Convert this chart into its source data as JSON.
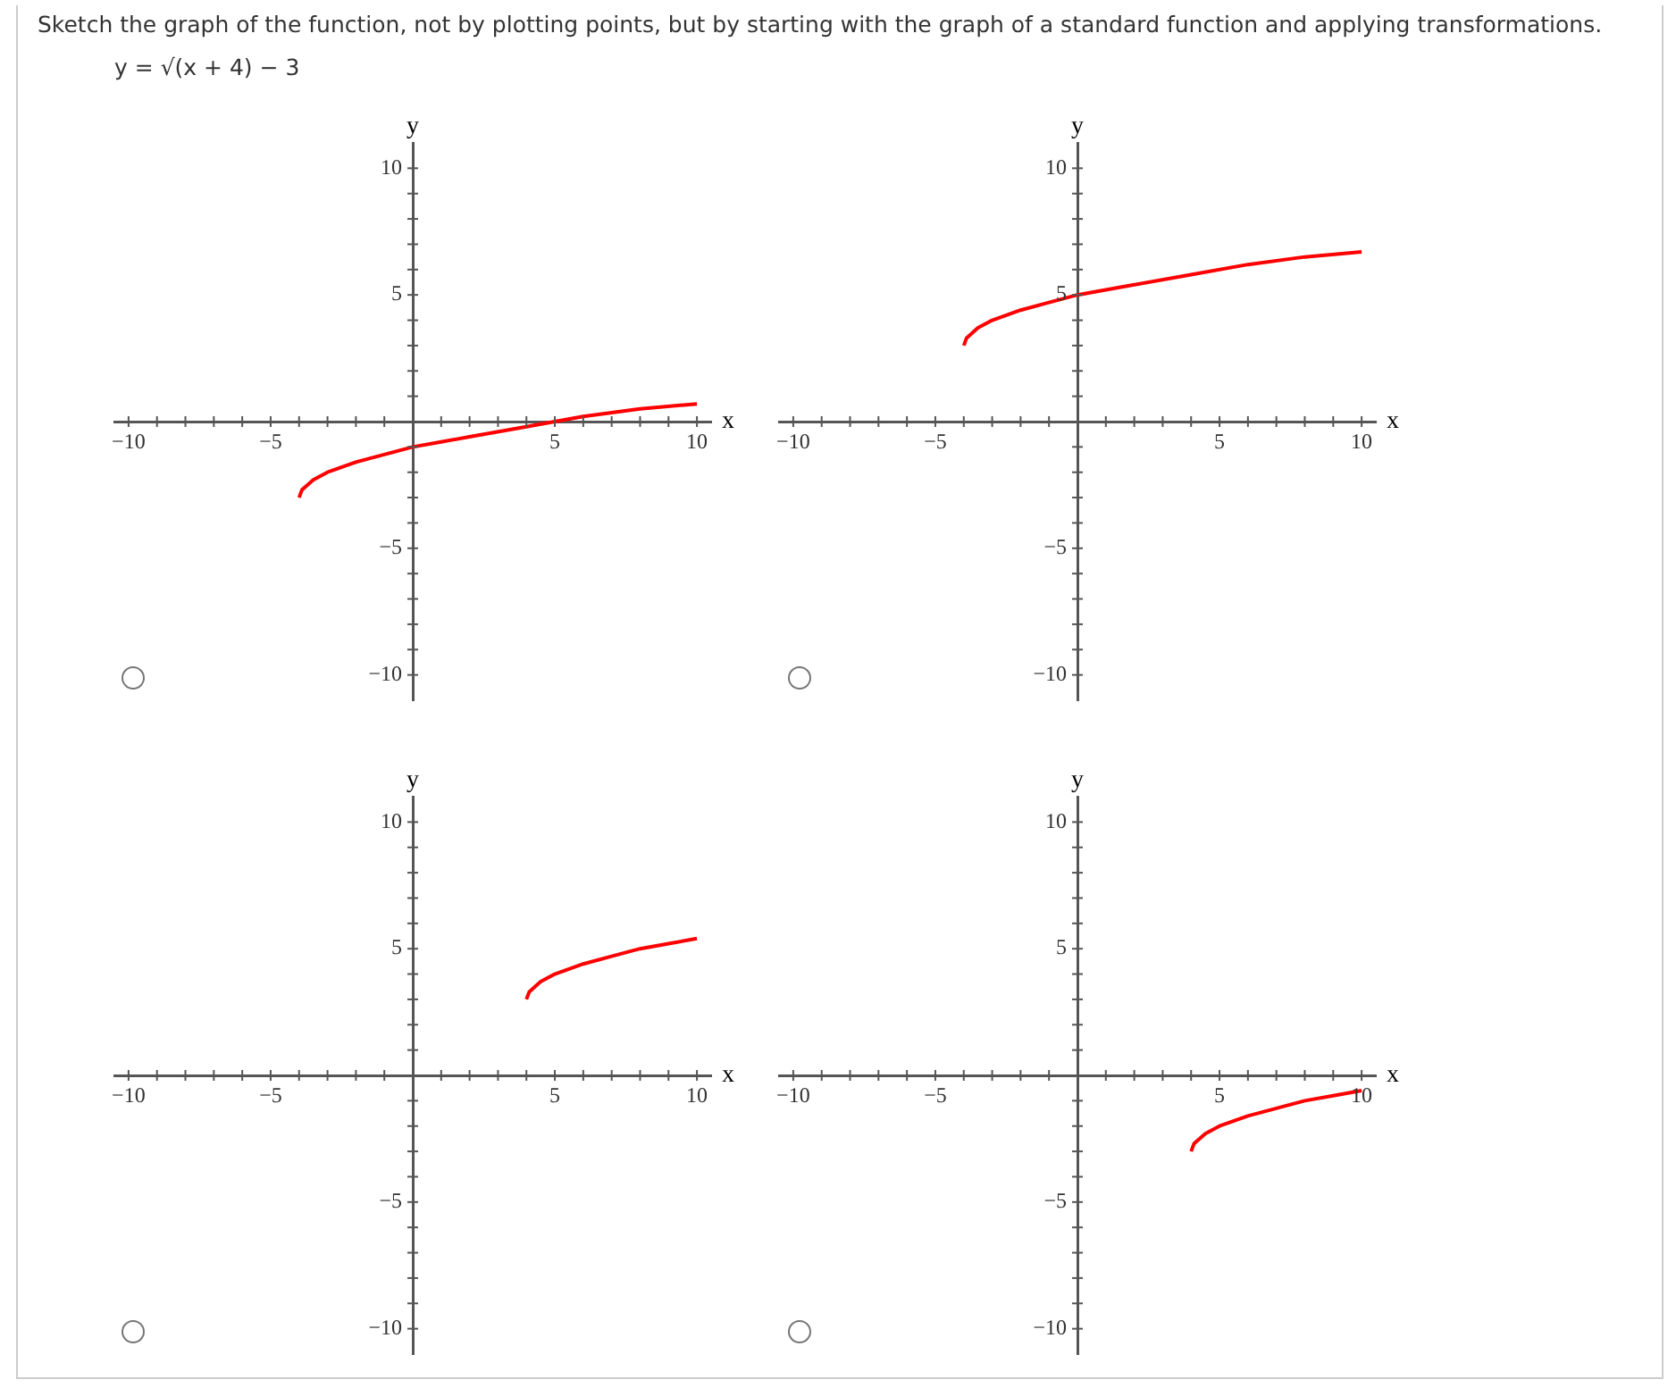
{
  "chart_data": [
    {
      "type": "line",
      "title": "Sketch the graph of the function, not by plotting points, but by starting with the graph of a standard function and applying transformations.",
      "subtitle": "y = √(x + 4) − 3",
      "xlabel": "x",
      "ylabel": "y",
      "xlim": [
        -10.5,
        10.5
      ],
      "ylim": [
        -11,
        11
      ],
      "xticks": [
        {
          "value": -10,
          "label": "−10"
        },
        {
          "value": -9,
          "label": null
        },
        {
          "value": -8,
          "label": null
        },
        {
          "value": -7,
          "label": null
        },
        {
          "value": -6,
          "label": null
        },
        {
          "value": -5,
          "label": "−5"
        },
        {
          "value": -4,
          "label": null
        },
        {
          "value": -3,
          "label": null
        },
        {
          "value": -2,
          "label": null
        },
        {
          "value": -1,
          "label": null
        },
        {
          "value": 1,
          "label": null
        },
        {
          "value": 2,
          "label": null
        },
        {
          "value": 3,
          "label": null
        },
        {
          "value": 4,
          "label": null
        },
        {
          "value": 5,
          "label": "5"
        },
        {
          "value": 6,
          "label": null
        },
        {
          "value": 7,
          "label": null
        },
        {
          "value": 8,
          "label": null
        },
        {
          "value": 9,
          "label": null
        },
        {
          "value": 10,
          "label": "10"
        }
      ],
      "yticks": [
        {
          "value": -10,
          "label": "−10"
        },
        {
          "value": -9,
          "label": null
        },
        {
          "value": -8,
          "label": null
        },
        {
          "value": -7,
          "label": null
        },
        {
          "value": -6,
          "label": null
        },
        {
          "value": -5,
          "label": "−5"
        },
        {
          "value": -4,
          "label": null
        },
        {
          "value": -3,
          "label": null
        },
        {
          "value": -2,
          "label": null
        },
        {
          "value": -1,
          "label": null
        },
        {
          "value": 1,
          "label": null
        },
        {
          "value": 2,
          "label": null
        },
        {
          "value": 3,
          "label": null
        },
        {
          "value": 4,
          "label": null
        },
        {
          "value": 5,
          "label": "5"
        },
        {
          "value": 6,
          "label": null
        },
        {
          "value": 7,
          "label": null
        },
        {
          "value": 8,
          "label": null
        },
        {
          "value": 9,
          "label": null
        },
        {
          "value": 10,
          "label": "10"
        }
      ],
      "series": [
        {
          "color": "#ff0000",
          "x": [
            -4,
            -3.9,
            -3.5,
            -3,
            -2,
            -1,
            0,
            1,
            2,
            4,
            6,
            8,
            10
          ],
          "values": [
            -3,
            -2.7,
            -2.3,
            -2,
            -1.6,
            -1.3,
            -1,
            -0.8,
            -0.6,
            -0.2,
            0.2,
            0.5,
            0.7
          ]
        }
      ]
    },
    {
      "type": "line",
      "xlabel": "x",
      "ylabel": "y",
      "xlim": [
        -10.5,
        10.5
      ],
      "ylim": [
        -11,
        11
      ],
      "xticks": [
        {
          "value": -10,
          "label": "−10"
        },
        {
          "value": -9,
          "label": null
        },
        {
          "value": -8,
          "label": null
        },
        {
          "value": -7,
          "label": null
        },
        {
          "value": -6,
          "label": null
        },
        {
          "value": -5,
          "label": "−5"
        },
        {
          "value": -4,
          "label": null
        },
        {
          "value": -3,
          "label": null
        },
        {
          "value": -2,
          "label": null
        },
        {
          "value": -1,
          "label": null
        },
        {
          "value": 1,
          "label": null
        },
        {
          "value": 2,
          "label": null
        },
        {
          "value": 3,
          "label": null
        },
        {
          "value": 4,
          "label": null
        },
        {
          "value": 5,
          "label": "5"
        },
        {
          "value": 6,
          "label": null
        },
        {
          "value": 7,
          "label": null
        },
        {
          "value": 8,
          "label": null
        },
        {
          "value": 9,
          "label": null
        },
        {
          "value": 10,
          "label": "10"
        }
      ],
      "yticks": [
        {
          "value": -10,
          "label": "−10"
        },
        {
          "value": -9,
          "label": null
        },
        {
          "value": -8,
          "label": null
        },
        {
          "value": -7,
          "label": null
        },
        {
          "value": -6,
          "label": null
        },
        {
          "value": -5,
          "label": "−5"
        },
        {
          "value": -4,
          "label": null
        },
        {
          "value": -3,
          "label": null
        },
        {
          "value": -2,
          "label": null
        },
        {
          "value": -1,
          "label": null
        },
        {
          "value": 1,
          "label": null
        },
        {
          "value": 2,
          "label": null
        },
        {
          "value": 3,
          "label": null
        },
        {
          "value": 4,
          "label": null
        },
        {
          "value": 5,
          "label": "5"
        },
        {
          "value": 6,
          "label": null
        },
        {
          "value": 7,
          "label": null
        },
        {
          "value": 8,
          "label": null
        },
        {
          "value": 9,
          "label": null
        },
        {
          "value": 10,
          "label": "10"
        }
      ],
      "series": [
        {
          "color": "#ff0000",
          "x": [
            -4,
            -3.9,
            -3.5,
            -3,
            -2,
            -1,
            0,
            1,
            2,
            4,
            6,
            8,
            10
          ],
          "values": [
            3,
            3.3,
            3.7,
            4,
            4.4,
            4.7,
            5,
            5.2,
            5.4,
            5.8,
            6.2,
            6.5,
            6.7
          ]
        }
      ]
    },
    {
      "type": "line",
      "xlabel": "x",
      "ylabel": "y",
      "xlim": [
        -10.5,
        10.5
      ],
      "ylim": [
        -11,
        11
      ],
      "xticks": [
        {
          "value": -10,
          "label": "−10"
        },
        {
          "value": -9,
          "label": null
        },
        {
          "value": -8,
          "label": null
        },
        {
          "value": -7,
          "label": null
        },
        {
          "value": -6,
          "label": null
        },
        {
          "value": -5,
          "label": "−5"
        },
        {
          "value": -4,
          "label": null
        },
        {
          "value": -3,
          "label": null
        },
        {
          "value": -2,
          "label": null
        },
        {
          "value": -1,
          "label": null
        },
        {
          "value": 1,
          "label": null
        },
        {
          "value": 2,
          "label": null
        },
        {
          "value": 3,
          "label": null
        },
        {
          "value": 4,
          "label": null
        },
        {
          "value": 5,
          "label": "5"
        },
        {
          "value": 6,
          "label": null
        },
        {
          "value": 7,
          "label": null
        },
        {
          "value": 8,
          "label": null
        },
        {
          "value": 9,
          "label": null
        },
        {
          "value": 10,
          "label": "10"
        }
      ],
      "yticks": [
        {
          "value": -10,
          "label": "−10"
        },
        {
          "value": -9,
          "label": null
        },
        {
          "value": -8,
          "label": null
        },
        {
          "value": -7,
          "label": null
        },
        {
          "value": -6,
          "label": null
        },
        {
          "value": -5,
          "label": "−5"
        },
        {
          "value": -4,
          "label": null
        },
        {
          "value": -3,
          "label": null
        },
        {
          "value": -2,
          "label": null
        },
        {
          "value": -1,
          "label": null
        },
        {
          "value": 1,
          "label": null
        },
        {
          "value": 2,
          "label": null
        },
        {
          "value": 3,
          "label": null
        },
        {
          "value": 4,
          "label": null
        },
        {
          "value": 5,
          "label": "5"
        },
        {
          "value": 6,
          "label": null
        },
        {
          "value": 7,
          "label": null
        },
        {
          "value": 8,
          "label": null
        },
        {
          "value": 9,
          "label": null
        },
        {
          "value": 10,
          "label": "10"
        }
      ],
      "series": [
        {
          "color": "#ff0000",
          "x": [
            4,
            4.1,
            4.5,
            5,
            6,
            7,
            8,
            9,
            10
          ],
          "values": [
            3,
            3.3,
            3.7,
            4,
            4.4,
            4.7,
            5,
            5.2,
            5.4
          ]
        }
      ]
    },
    {
      "type": "line",
      "xlabel": "x",
      "ylabel": "y",
      "xlim": [
        -10.5,
        10.5
      ],
      "ylim": [
        -11,
        11
      ],
      "xticks": [
        {
          "value": -10,
          "label": "−10"
        },
        {
          "value": -9,
          "label": null
        },
        {
          "value": -8,
          "label": null
        },
        {
          "value": -7,
          "label": null
        },
        {
          "value": -6,
          "label": null
        },
        {
          "value": -5,
          "label": "−5"
        },
        {
          "value": -4,
          "label": null
        },
        {
          "value": -3,
          "label": null
        },
        {
          "value": -2,
          "label": null
        },
        {
          "value": -1,
          "label": null
        },
        {
          "value": 1,
          "label": null
        },
        {
          "value": 2,
          "label": null
        },
        {
          "value": 3,
          "label": null
        },
        {
          "value": 4,
          "label": null
        },
        {
          "value": 5,
          "label": "5"
        },
        {
          "value": 6,
          "label": null
        },
        {
          "value": 7,
          "label": null
        },
        {
          "value": 8,
          "label": null
        },
        {
          "value": 9,
          "label": null
        },
        {
          "value": 10,
          "label": "10"
        }
      ],
      "yticks": [
        {
          "value": -10,
          "label": "−10"
        },
        {
          "value": -9,
          "label": null
        },
        {
          "value": -8,
          "label": null
        },
        {
          "value": -7,
          "label": null
        },
        {
          "value": -6,
          "label": null
        },
        {
          "value": -5,
          "label": "−5"
        },
        {
          "value": -4,
          "label": null
        },
        {
          "value": -3,
          "label": null
        },
        {
          "value": -2,
          "label": null
        },
        {
          "value": -1,
          "label": null
        },
        {
          "value": 1,
          "label": null
        },
        {
          "value": 2,
          "label": null
        },
        {
          "value": 3,
          "label": null
        },
        {
          "value": 4,
          "label": null
        },
        {
          "value": 5,
          "label": "5"
        },
        {
          "value": 6,
          "label": null
        },
        {
          "value": 7,
          "label": null
        },
        {
          "value": 8,
          "label": null
        },
        {
          "value": 9,
          "label": null
        },
        {
          "value": 10,
          "label": "10"
        }
      ],
      "series": [
        {
          "color": "#ff0000",
          "x": [
            4,
            4.1,
            4.5,
            5,
            6,
            7,
            8,
            9,
            10
          ],
          "values": [
            -3,
            -2.7,
            -2.3,
            -2,
            -1.6,
            -1.3,
            -1,
            -0.8,
            -0.6
          ]
        }
      ]
    }
  ]
}
